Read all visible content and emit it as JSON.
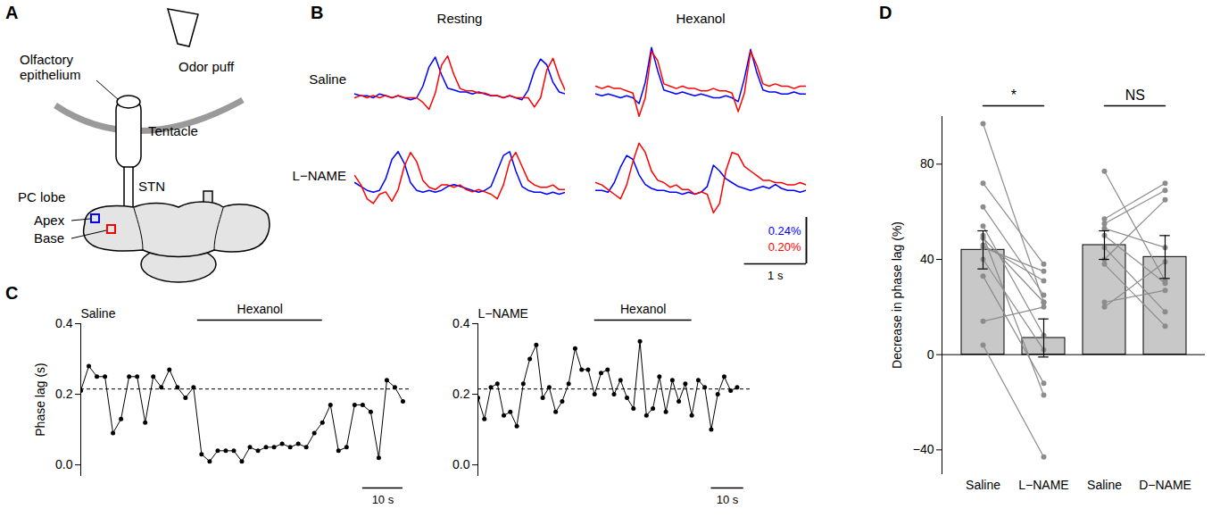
{
  "diagram": {
    "panel": "A",
    "labels": {
      "odor_puff": "Odor puff",
      "olfactory_epithelium": "Olfactory epithelium",
      "tentacle": "Tentacle",
      "stn": "STN",
      "pc_lobe": "PC lobe",
      "apex": "Apex",
      "base": "Base"
    },
    "colors": {
      "apex": "#0000ff",
      "base": "#ff0000"
    }
  },
  "chart_data": [
    {
      "panel": "B",
      "type": "line",
      "tick_labels": false,
      "columns": [
        "Resting",
        "Hexanol"
      ],
      "rows": [
        "Saline",
        "L−NAME"
      ],
      "x": [
        0,
        0.1,
        0.2,
        0.3,
        0.4,
        0.5,
        0.6,
        0.7,
        0.8,
        0.9,
        1,
        1.1,
        1.2,
        1.3,
        1.4,
        1.5,
        1.6,
        1.7,
        1.8,
        1.9,
        2,
        2.1,
        2.2,
        2.3,
        2.4,
        2.5,
        2.6,
        2.7,
        2.8,
        2.9,
        3,
        3.1,
        3.2,
        3.3,
        3.4
      ],
      "xlim": [
        0,
        3.4
      ],
      "traces": [
        {
          "row": "Saline",
          "column": "Resting",
          "series": [
            {
              "color": "#0000ff",
              "ylim": [
                -0.12,
                0.3
              ],
              "values": [
                0.02,
                0.01,
                0.01,
                0.0,
                0.02,
                0.01,
                0.0,
                0.01,
                0.0,
                -0.01,
                0.0,
                0.06,
                0.16,
                0.21,
                0.12,
                0.05,
                0.04,
                0.03,
                0.03,
                0.02,
                0.03,
                0.02,
                0.01,
                0.01,
                0.0,
                0.01,
                0.0,
                -0.01,
                0.04,
                0.14,
                0.2,
                0.17,
                0.08,
                0.03,
                0.02
              ]
            },
            {
              "color": "#ff0000",
              "ylim": [
                -0.1,
                0.25
              ],
              "values": [
                0.0,
                0.01,
                0.0,
                0.01,
                0.0,
                0.01,
                0.0,
                0.01,
                0.0,
                0.0,
                0.0,
                -0.02,
                -0.05,
                0.02,
                0.14,
                0.18,
                0.1,
                0.04,
                0.03,
                0.03,
                0.02,
                0.02,
                0.01,
                0.01,
                0.0,
                0.01,
                0.0,
                0.0,
                0.0,
                -0.04,
                0.0,
                0.12,
                0.17,
                0.09,
                0.03
              ]
            }
          ]
        },
        {
          "row": "Saline",
          "column": "Hexanol",
          "series": [
            {
              "color": "#0000ff",
              "ylim": [
                -0.12,
                0.3
              ],
              "values": [
                0.02,
                0.01,
                0.02,
                0.01,
                0.0,
                0.01,
                0.0,
                -0.03,
                0.08,
                0.26,
                0.14,
                0.04,
                0.03,
                0.02,
                0.03,
                0.02,
                0.01,
                0.02,
                0.01,
                0.0,
                0.0,
                0.01,
                0.0,
                -0.02,
                0.1,
                0.25,
                0.13,
                0.04,
                0.03,
                0.03,
                0.02,
                0.02,
                0.03,
                0.02,
                0.02
              ]
            },
            {
              "color": "#ff0000",
              "ylim": [
                -0.1,
                0.25
              ],
              "values": [
                0.05,
                0.04,
                0.05,
                0.04,
                0.04,
                0.03,
                0.02,
                -0.08,
                0.0,
                0.2,
                0.16,
                0.06,
                0.05,
                0.04,
                0.05,
                0.04,
                0.04,
                0.03,
                0.03,
                0.04,
                0.03,
                0.03,
                0.02,
                -0.06,
                0.02,
                0.2,
                0.14,
                0.06,
                0.05,
                0.06,
                0.05,
                0.05,
                0.04,
                0.05,
                0.05
              ]
            }
          ]
        },
        {
          "row": "L−NAME",
          "column": "Resting",
          "series": [
            {
              "color": "#0000ff",
              "ylim": [
                -0.12,
                0.3
              ],
              "values": [
                0.06,
                0.04,
                0.02,
                0.01,
                0.02,
                0.08,
                0.18,
                0.22,
                0.16,
                0.06,
                0.02,
                0.01,
                0.02,
                0.01,
                0.02,
                0.04,
                0.05,
                0.04,
                0.03,
                0.02,
                0.01,
                0.02,
                0.04,
                0.12,
                0.2,
                0.22,
                0.12,
                0.04,
                0.02,
                0.01,
                0.01,
                0.0,
                0.01,
                0.0,
                0.01
              ]
            },
            {
              "color": "#ff0000",
              "ylim": [
                -0.1,
                0.25
              ],
              "values": [
                0.08,
                0.04,
                -0.02,
                -0.04,
                0.0,
                0.01,
                -0.03,
                0.02,
                0.12,
                0.18,
                0.14,
                0.06,
                0.03,
                0.02,
                0.04,
                0.04,
                0.03,
                0.04,
                0.02,
                0.01,
                0.02,
                0.01,
                0.0,
                -0.02,
                0.04,
                0.14,
                0.18,
                0.12,
                0.06,
                0.04,
                0.03,
                0.03,
                0.04,
                0.02,
                0.02
              ]
            }
          ]
        },
        {
          "row": "L−NAME",
          "column": "Hexanol",
          "series": [
            {
              "color": "#0000ff",
              "ylim": [
                -0.12,
                0.3
              ],
              "values": [
                0.02,
                0.02,
                0.01,
                0.06,
                0.14,
                0.2,
                0.18,
                0.1,
                0.05,
                0.03,
                0.02,
                0.02,
                0.01,
                0.01,
                0.0,
                0.01,
                0.0,
                0.01,
                0.04,
                0.15,
                0.12,
                0.08,
                0.06,
                0.04,
                0.03,
                0.02,
                0.03,
                0.04,
                0.03,
                0.05,
                0.03,
                0.02,
                0.02,
                0.01,
                0.02
              ]
            },
            {
              "color": "#ff0000",
              "ylim": [
                -0.1,
                0.25
              ],
              "values": [
                0.05,
                0.04,
                0.02,
                0.0,
                -0.02,
                0.04,
                0.14,
                0.22,
                0.18,
                0.1,
                0.06,
                0.05,
                0.03,
                0.04,
                0.02,
                0.02,
                0.0,
                0.01,
                0.0,
                -0.08,
                -0.04,
                0.1,
                0.18,
                0.17,
                0.12,
                0.1,
                0.08,
                0.06,
                0.06,
                0.05,
                0.05,
                0.04,
                0.04,
                0.05,
                0.04
              ]
            }
          ]
        }
      ],
      "scale_bar": {
        "time": {
          "from": 2.4,
          "to": 3.4,
          "label": "1 s"
        },
        "amplitude": [
          {
            "from": 0,
            "to": 0.24,
            "label": "0.24%",
            "color": "#0000ff"
          },
          {
            "from": 0,
            "to": 0.2,
            "label": "0.20%",
            "color": "#ff0000"
          }
        ]
      }
    },
    {
      "panel": "C",
      "type": "line",
      "marker": "circle",
      "title": "Saline",
      "tick_labels": "y",
      "x": [
        0,
        2,
        4,
        6,
        8,
        10,
        12,
        14,
        16,
        18,
        20,
        22,
        24,
        26,
        28,
        30,
        32,
        34,
        36,
        38,
        40,
        42,
        44,
        46,
        48,
        50,
        52,
        54,
        56,
        58,
        60,
        62,
        64,
        66,
        68,
        70,
        72,
        74,
        76,
        78,
        80
      ],
      "values": [
        0.21,
        0.28,
        0.25,
        0.25,
        0.09,
        0.13,
        0.25,
        0.25,
        0.12,
        0.25,
        0.22,
        0.27,
        0.22,
        0.19,
        0.22,
        0.03,
        0.01,
        0.04,
        0.04,
        0.04,
        0.01,
        0.05,
        0.04,
        0.05,
        0.05,
        0.06,
        0.05,
        0.06,
        0.05,
        0.09,
        0.12,
        0.17,
        0.04,
        0.05,
        0.17,
        0.17,
        0.15,
        0.02,
        0.24,
        0.22,
        0.18
      ],
      "color": "#000000",
      "xlim": [
        0,
        82
      ],
      "ylim": [
        -0.03,
        0.4
      ],
      "yticks": [
        {
          "value": 0,
          "label": "0.0"
        },
        0.2,
        0.4
      ],
      "ylabel": "Phase lag (s)",
      "reference_line": 0.215,
      "annotation": {
        "label": "Hexanol",
        "from": 29,
        "to": 60
      },
      "scale_bar": {
        "from": 70,
        "to": 80,
        "label": "10 s"
      }
    },
    {
      "type": "line",
      "marker": "circle",
      "title": "L−NAME",
      "tick_labels": "y",
      "x": [
        0,
        2,
        4,
        6,
        8,
        10,
        12,
        14,
        16,
        18,
        20,
        22,
        24,
        26,
        28,
        30,
        32,
        34,
        36,
        38,
        40,
        42,
        44,
        46,
        48,
        50,
        52,
        54,
        56,
        58,
        60,
        62,
        64,
        66,
        68,
        70,
        72,
        74,
        76,
        78,
        80
      ],
      "values": [
        0.19,
        0.13,
        0.22,
        0.23,
        0.14,
        0.15,
        0.11,
        0.23,
        0.3,
        0.34,
        0.19,
        0.22,
        0.15,
        0.18,
        0.23,
        0.33,
        0.27,
        0.27,
        0.2,
        0.26,
        0.27,
        0.2,
        0.24,
        0.19,
        0.16,
        0.35,
        0.14,
        0.16,
        0.25,
        0.15,
        0.24,
        0.18,
        0.23,
        0.14,
        0.24,
        0.22,
        0.1,
        0.2,
        0.25,
        0.21,
        0.22
      ],
      "color": "#000000",
      "xlim": [
        0,
        84
      ],
      "ylim": [
        -0.03,
        0.4
      ],
      "yticks": [
        {
          "value": 0,
          "label": "0.0"
        },
        0.2,
        0.4
      ],
      "reference_line": 0.215,
      "annotation": {
        "label": "Hexanol",
        "from": 36,
        "to": 66
      },
      "scale_bar": {
        "from": 72,
        "to": 82,
        "label": "10 s"
      }
    },
    {
      "panel": "D",
      "type": "bar",
      "categories": [
        "Saline",
        "L−NAME",
        "Saline",
        "D−NAME"
      ],
      "values": [
        44,
        7,
        46,
        41
      ],
      "errors": [
        8,
        8,
        6,
        9
      ],
      "color": "#c8c8c8",
      "ylim": [
        -50,
        100
      ],
      "yticks": [
        {
          "value": -40,
          "label": "−40"
        },
        0,
        40,
        80
      ],
      "ylabel": "Decrease in phase lag (%)",
      "pairs": [
        {
          "categories": [
            0,
            1
          ],
          "color": "#8c8c8c",
          "significance": "*",
          "first": [
            97,
            72,
            62,
            54,
            50,
            49,
            46,
            45,
            40,
            33,
            14,
            4
          ],
          "second": [
            22,
            38,
            25,
            8,
            -17,
            22,
            31,
            35,
            2,
            -12,
            20,
            -43
          ]
        },
        {
          "categories": [
            2,
            3
          ],
          "color": "#8c8c8c",
          "significance": "NS",
          "first": [
            77,
            57,
            55,
            53,
            50,
            45,
            40,
            38,
            22,
            20
          ],
          "second": [
            31,
            72,
            69,
            45,
            30,
            18,
            65,
            12,
            27,
            39
          ]
        }
      ]
    }
  ]
}
